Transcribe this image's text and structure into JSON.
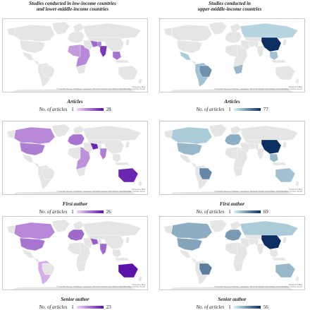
{
  "columns": [
    {
      "heading_line1": "Studies conducted in low-income countries",
      "heading_line2": "and lower-middle-income countries"
    },
    {
      "heading_line1": "Studies conducted in",
      "heading_line2": "upper-middle-income countries"
    }
  ],
  "legend_label": "No. of articles",
  "map_attribution": "Powered by Bing",
  "map_copyright": "© Australian Bureau of Statistics, GeoNames, Microsoft, Navinfo, Open Places, OpenStreetMap, TomTom, Zenrin",
  "colors": {
    "land": "#e4e6e6",
    "ocean": "#ffffff",
    "purple_low": "#f2d6f7",
    "purple_high": "#5b12a8",
    "blue_low": "#d4f2f7",
    "blue_high": "#0c2f62"
  },
  "panels": [
    {
      "caption": "Articles",
      "min": "1",
      "max": "28",
      "scheme": "purple"
    },
    {
      "caption": "Articles",
      "min": "1",
      "max": "77",
      "scheme": "blue"
    },
    {
      "caption": "First author",
      "min": "1",
      "max": "26",
      "scheme": "purple"
    },
    {
      "caption": "First author",
      "min": "1",
      "max": "69",
      "scheme": "blue"
    },
    {
      "caption": "Senior author",
      "min": "1",
      "max": "23",
      "scheme": "purple"
    },
    {
      "caption": "Senior author",
      "min": "1",
      "max": "56",
      "scheme": "blue"
    }
  ],
  "highlighted_regions": [
    {
      "india": 0.8,
      "iran": 0.55,
      "africa_west": 0.3,
      "africa_east": 0.4,
      "se_asia": 0.5,
      "pakistan": 0.45
    },
    {
      "china": 1.0,
      "brazil": 0.5,
      "south_am": 0.25,
      "russia": 0.15,
      "mexico": 0.2,
      "s_africa": 0.3,
      "se_asia": 0.25
    },
    {
      "usa": 0.45,
      "canada": 0.4,
      "australia": 0.9,
      "uk_eu": 0.5,
      "iran": 0.9,
      "india": 0.45,
      "africa_east": 0.35
    },
    {
      "china": 1.0,
      "brazil": 0.55,
      "usa": 0.3,
      "canada": 0.2,
      "australia": 0.25,
      "uk_eu": 0.35,
      "se_asia": 0.3
    },
    {
      "usa": 0.5,
      "canada": 0.4,
      "australia": 1.0,
      "uk_eu": 0.55,
      "iran": 0.6,
      "india": 0.55,
      "south_am": 0.2
    },
    {
      "china": 1.0,
      "brazil": 0.6,
      "usa": 0.4,
      "canada": 0.35,
      "australia": 0.3,
      "uk_eu": 0.45,
      "russia": 0.2
    }
  ]
}
